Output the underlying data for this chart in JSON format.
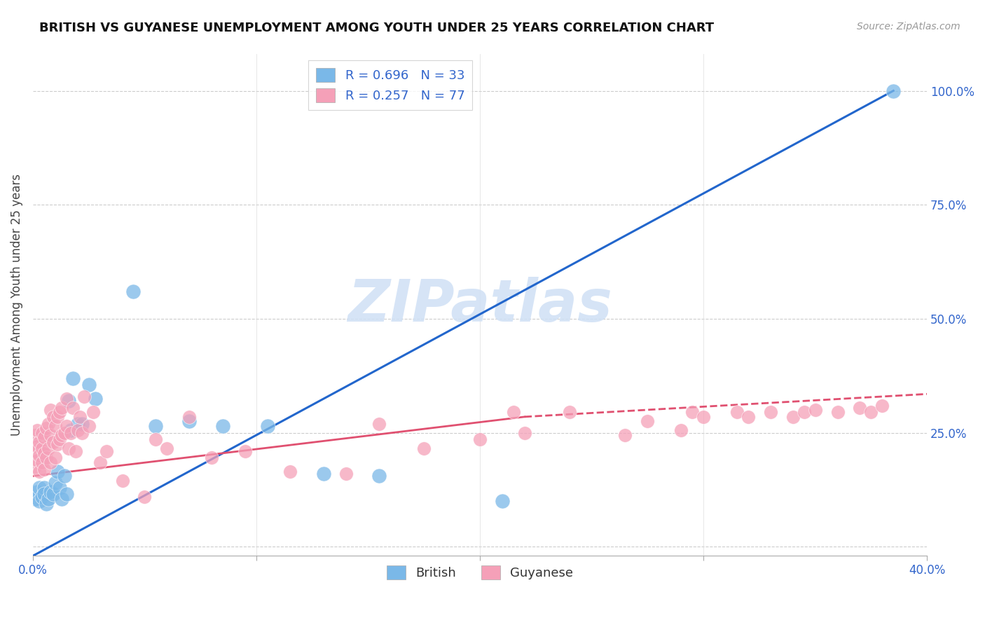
{
  "title": "BRITISH VS GUYANESE UNEMPLOYMENT AMONG YOUTH UNDER 25 YEARS CORRELATION CHART",
  "source": "Source: ZipAtlas.com",
  "ylabel": "Unemployment Among Youth under 25 years",
  "xlim": [
    0.0,
    0.4
  ],
  "ylim": [
    -0.02,
    1.08
  ],
  "xticks": [
    0.0,
    0.1,
    0.2,
    0.3,
    0.4
  ],
  "xticklabels": [
    "0.0%",
    "",
    "",
    "",
    "40.0%"
  ],
  "yticks_right": [
    0.25,
    0.5,
    0.75,
    1.0
  ],
  "yticks_right_labels": [
    "25.0%",
    "50.0%",
    "75.0%",
    "100.0%"
  ],
  "british_R": 0.696,
  "british_N": 33,
  "guyanese_R": 0.257,
  "guyanese_N": 77,
  "british_color": "#7ab8e8",
  "guyanese_color": "#f5a0b8",
  "british_line_color": "#2266cc",
  "guyanese_line_color": "#e05070",
  "watermark": "ZIPatlas",
  "watermark_color": "#cfe0f5",
  "british_line_x0": 0.0,
  "british_line_y0": -0.02,
  "british_line_x1": 0.385,
  "british_line_y1": 1.0,
  "guyanese_line_solid_x0": 0.0,
  "guyanese_line_solid_y0": 0.155,
  "guyanese_line_solid_x1": 0.22,
  "guyanese_line_solid_y1": 0.285,
  "guyanese_line_dash_x0": 0.22,
  "guyanese_line_dash_y0": 0.285,
  "guyanese_line_dash_x1": 0.4,
  "guyanese_line_dash_y1": 0.335,
  "british_scatter_x": [
    0.001,
    0.002,
    0.003,
    0.003,
    0.004,
    0.005,
    0.005,
    0.006,
    0.007,
    0.008,
    0.009,
    0.01,
    0.011,
    0.012,
    0.013,
    0.014,
    0.015,
    0.016,
    0.017,
    0.018,
    0.02,
    0.022,
    0.025,
    0.028,
    0.045,
    0.055,
    0.07,
    0.085,
    0.105,
    0.13,
    0.155,
    0.21,
    0.385
  ],
  "british_scatter_y": [
    0.105,
    0.12,
    0.1,
    0.13,
    0.11,
    0.13,
    0.115,
    0.095,
    0.105,
    0.12,
    0.115,
    0.14,
    0.165,
    0.13,
    0.105,
    0.155,
    0.115,
    0.32,
    0.255,
    0.37,
    0.27,
    0.27,
    0.355,
    0.325,
    0.56,
    0.265,
    0.275,
    0.265,
    0.265,
    0.16,
    0.155,
    0.1,
    1.0
  ],
  "guyanese_scatter_x": [
    0.001,
    0.001,
    0.001,
    0.002,
    0.002,
    0.002,
    0.003,
    0.003,
    0.003,
    0.004,
    0.004,
    0.004,
    0.005,
    0.005,
    0.005,
    0.006,
    0.006,
    0.007,
    0.007,
    0.008,
    0.008,
    0.008,
    0.009,
    0.009,
    0.01,
    0.01,
    0.011,
    0.011,
    0.012,
    0.012,
    0.013,
    0.013,
    0.014,
    0.015,
    0.015,
    0.016,
    0.017,
    0.018,
    0.019,
    0.02,
    0.021,
    0.022,
    0.023,
    0.025,
    0.027,
    0.03,
    0.033,
    0.04,
    0.05,
    0.055,
    0.06,
    0.07,
    0.08,
    0.095,
    0.115,
    0.14,
    0.155,
    0.175,
    0.2,
    0.215,
    0.22,
    0.24,
    0.265,
    0.275,
    0.29,
    0.295,
    0.3,
    0.315,
    0.32,
    0.33,
    0.34,
    0.345,
    0.35,
    0.36,
    0.37,
    0.375,
    0.38
  ],
  "guyanese_scatter_y": [
    0.175,
    0.21,
    0.245,
    0.19,
    0.22,
    0.255,
    0.165,
    0.2,
    0.23,
    0.185,
    0.215,
    0.25,
    0.17,
    0.205,
    0.24,
    0.195,
    0.26,
    0.215,
    0.27,
    0.185,
    0.245,
    0.3,
    0.23,
    0.285,
    0.195,
    0.265,
    0.225,
    0.285,
    0.235,
    0.295,
    0.245,
    0.305,
    0.25,
    0.265,
    0.325,
    0.215,
    0.25,
    0.305,
    0.21,
    0.255,
    0.285,
    0.25,
    0.33,
    0.265,
    0.295,
    0.185,
    0.21,
    0.145,
    0.11,
    0.235,
    0.215,
    0.285,
    0.195,
    0.21,
    0.165,
    0.16,
    0.27,
    0.215,
    0.235,
    0.295,
    0.25,
    0.295,
    0.245,
    0.275,
    0.255,
    0.295,
    0.285,
    0.295,
    0.285,
    0.295,
    0.285,
    0.295,
    0.3,
    0.295,
    0.305,
    0.295,
    0.31
  ]
}
